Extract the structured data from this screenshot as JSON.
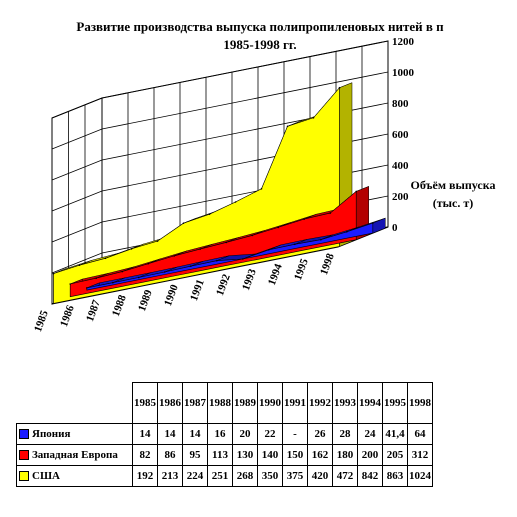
{
  "chart_data": {
    "type": "area",
    "title_lines": [
      "Развитие производства выпуска полипропиленовых нитей в п",
      "1985-1998 гг."
    ],
    "ylabel_lines": [
      "Объём выпуска",
      "(тыс. т)"
    ],
    "categories": [
      "1985",
      "1986",
      "1987",
      "1988",
      "1989",
      "1990",
      "1991",
      "1992",
      "1993",
      "1994",
      "1995",
      "1998"
    ],
    "yticks": [
      "0",
      "200",
      "400",
      "600",
      "800",
      "1000",
      "1200"
    ],
    "ylim": [
      0,
      1200
    ],
    "grid": true,
    "three_d": true,
    "series": [
      {
        "name": "Япония",
        "color": "#1c1cff",
        "values": [
          14,
          14,
          14,
          16,
          20,
          22,
          null,
          26,
          28,
          24,
          41.4,
          64
        ]
      },
      {
        "name": "Западная Европа",
        "color": "#ff0000",
        "values": [
          82,
          86,
          95,
          113,
          130,
          140,
          150,
          162,
          180,
          200,
          205,
          312
        ]
      },
      {
        "name": "США",
        "color": "#ffff00",
        "values": [
          192,
          213,
          224,
          251,
          268,
          350,
          375,
          420,
          472,
          842,
          863,
          1024
        ]
      }
    ]
  },
  "table": {
    "header": [
      "1985",
      "1986",
      "1987",
      "1988",
      "1989",
      "1990",
      "1991",
      "1992",
      "1993",
      "1994",
      "1995",
      "1998"
    ],
    "rows": [
      {
        "name": "Япония",
        "color": "#1c1cff",
        "cells": [
          "14",
          "14",
          "14",
          "16",
          "20",
          "22",
          "-",
          "26",
          "28",
          "24",
          "41,4",
          "64"
        ]
      },
      {
        "name": "Западная Европа",
        "color": "#ff0000",
        "cells": [
          "82",
          "86",
          "95",
          "113",
          "130",
          "140",
          "150",
          "162",
          "180",
          "200",
          "205",
          "312"
        ]
      },
      {
        "name": "США",
        "color": "#ffff00",
        "cells": [
          "192",
          "213",
          "224",
          "251",
          "268",
          "350",
          "375",
          "420",
          "472",
          "842",
          "863",
          "1024"
        ]
      }
    ]
  }
}
